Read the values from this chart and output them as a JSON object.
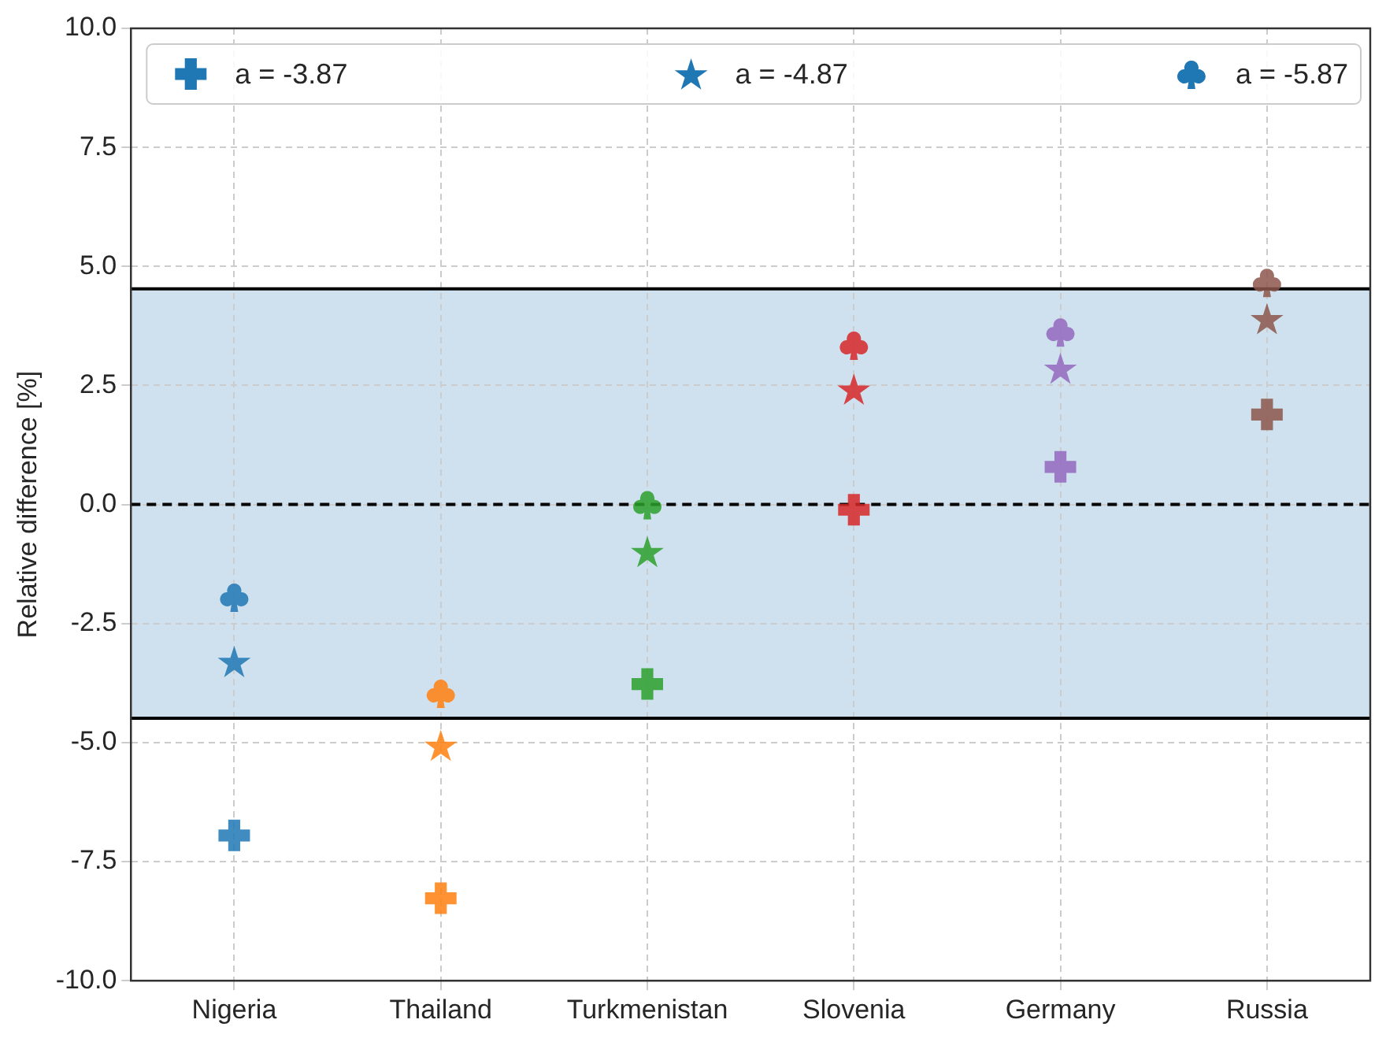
{
  "chart_data": {
    "type": "scatter",
    "ylabel": "Relative difference [%]",
    "categories": [
      "Nigeria",
      "Thailand",
      "Turkmenistan",
      "Slovenia",
      "Germany",
      "Russia"
    ],
    "series": [
      {
        "name": "a = -3.87",
        "marker": "cross",
        "color": "#1f77b4",
        "colors": [
          "#1f77b4",
          "#ff7f0e",
          "#2ca02c",
          "#d62728",
          "#9467bd",
          "#8c564b"
        ],
        "values": [
          -6.95,
          -8.27,
          -3.77,
          -0.11,
          0.79,
          1.89
        ]
      },
      {
        "name": "a = -4.87",
        "marker": "star",
        "color": "#1f77b4",
        "colors": [
          "#1f77b4",
          "#ff7f0e",
          "#2ca02c",
          "#d62728",
          "#9467bd",
          "#8c564b"
        ],
        "values": [
          -3.3,
          -5.06,
          -0.99,
          2.42,
          2.86,
          3.9
        ]
      },
      {
        "name": "a = -5.87",
        "color": "#1f77b4",
        "colors": [
          "#1f77b4",
          "#ff7f0e",
          "#2ca02c",
          "#d62728",
          "#9467bd",
          "#8c564b"
        ],
        "values": [
          -1.94,
          -3.96,
          0.0,
          3.35,
          3.63,
          4.67
        ]
      }
    ],
    "ylim": [
      -10,
      10
    ],
    "yticks": [
      {
        "value": -10,
        "label": "-10.0"
      },
      {
        "value": -7.5,
        "label": "-7.5"
      },
      {
        "value": -5,
        "label": "-5.0"
      },
      {
        "value": -2.5,
        "label": "-2.5"
      },
      {
        "value": 0,
        "label": "0.0"
      },
      {
        "value": 2.5,
        "label": "2.5"
      },
      {
        "value": 5,
        "label": "5.0"
      },
      {
        "value": 7.5,
        "label": "7.5"
      },
      {
        "value": 10,
        "label": "10.0"
      }
    ],
    "bands": [
      {
        "axis": "y",
        "from": -4.49,
        "to": 4.53,
        "color": "#cfe1ee"
      }
    ],
    "ref_lines": [
      {
        "axis": "y",
        "value": 0,
        "color": "#000000",
        "line_style": "dashed"
      },
      {
        "axis": "y",
        "value": 4.53,
        "color": "#000000",
        "line_style": "solid"
      },
      {
        "axis": "y",
        "value": -4.49,
        "color": "#000000",
        "line_style": "solid"
      }
    ],
    "grid": true,
    "legend": "top"
  }
}
